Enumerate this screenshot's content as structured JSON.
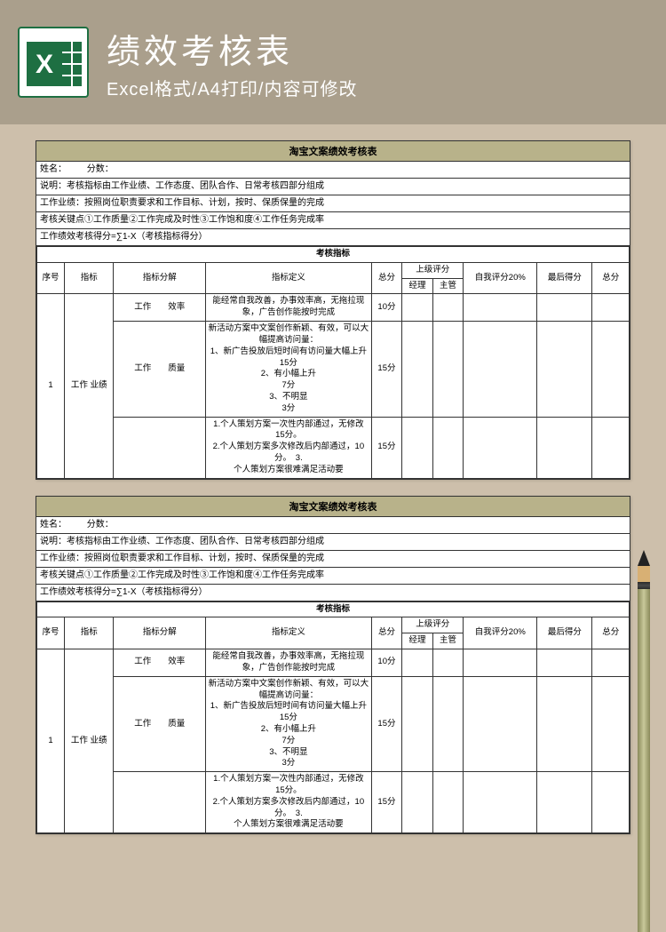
{
  "header": {
    "title": "绩效考核表",
    "subtitle": "Excel格式/A4打印/内容可修改"
  },
  "sheet": {
    "title": "淘宝文案绩效考核表",
    "name_label": "姓名：",
    "score_label": "分数：",
    "desc": "说明：考核指标由工作业绩、工作态度、团队合作、日常考核四部分组成",
    "perf": "工作业绩：按照岗位职责要求和工作目标、计划，按时、保质保量的完成",
    "keys": "考核关键点①工作质量②工作完成及时性③工作饱和度④工作任务完成率",
    "formula": "工作绩效考核得分=∑1-X（考核指标得分）",
    "section_header": "考核指标",
    "columns": {
      "seq": "序号",
      "indicator": "指标",
      "breakdown": "指标分解",
      "definition": "指标定义",
      "total": "总分",
      "superior_group": "上级评分",
      "manager": "经理",
      "supervisor": "主管",
      "self": "自我评分20%",
      "final": "最后得分",
      "sum": "总分"
    },
    "rows": [
      {
        "seq": "1",
        "indicator": "工作 业绩",
        "sub": [
          {
            "breakdown": "工作　　效率",
            "definition": "能经常自我改善，办事效率高，无拖拉现象，广告创作能按时完成",
            "total": "10分"
          },
          {
            "breakdown": "工作　　质量",
            "definition": "新活动方案中文案创作新颖、有效，可以大幅提高访问量：\n1、新广告投放后短时间有访问量大幅上升　15分\n2、有小幅上升\n7分\n3、不明显\n3分",
            "total": "15分"
          },
          {
            "breakdown": "",
            "definition": "1.个人策划方案一次性内部通过，无修改 15分。\n2.个人策划方案多次修改后内部通过，10分。　3.\n个人策划方案很难满足活动要",
            "total": "15分"
          }
        ]
      }
    ]
  },
  "colors": {
    "page_bg": "#cdbfab",
    "header_bg": "#aa9f8c",
    "sheet_title_bg": "#b8b28a",
    "border": "#333333",
    "text": "#000000",
    "white": "#ffffff"
  }
}
